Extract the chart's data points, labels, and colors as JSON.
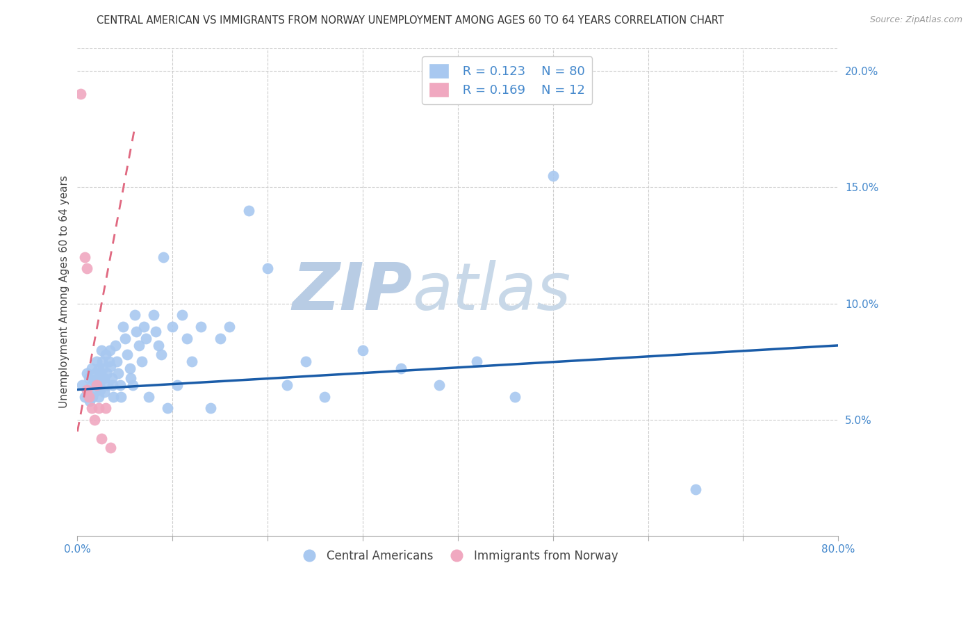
{
  "title": "CENTRAL AMERICAN VS IMMIGRANTS FROM NORWAY UNEMPLOYMENT AMONG AGES 60 TO 64 YEARS CORRELATION CHART",
  "source": "Source: ZipAtlas.com",
  "ylabel": "Unemployment Among Ages 60 to 64 years",
  "xlim": [
    0,
    0.8
  ],
  "ylim": [
    0,
    0.21
  ],
  "xticks": [
    0.0,
    0.1,
    0.2,
    0.3,
    0.4,
    0.5,
    0.6,
    0.7,
    0.8
  ],
  "xticklabels": [
    "0.0%",
    "",
    "",
    "",
    "",
    "",
    "",
    "",
    "80.0%"
  ],
  "yticks_right": [
    0.0,
    0.05,
    0.1,
    0.15,
    0.2
  ],
  "yticklabels_right": [
    "",
    "5.0%",
    "10.0%",
    "15.0%",
    "20.0%"
  ],
  "legend_blue_R": "0.123",
  "legend_blue_N": "80",
  "legend_pink_R": "0.169",
  "legend_pink_N": "12",
  "blue_color": "#a8c8f0",
  "pink_color": "#f0a8c0",
  "line_blue_color": "#1a5ca8",
  "line_pink_color": "#e06880",
  "watermark": "ZIPatlas",
  "watermark_color": "#d0dff0",
  "title_fontsize": 10.5,
  "axis_label_fontsize": 11,
  "tick_fontsize": 11,
  "tick_color": "#4488cc",
  "legend_label_blue": "Central Americans",
  "legend_label_pink": "Immigrants from Norway",
  "blue_scatter_x": [
    0.005,
    0.008,
    0.01,
    0.01,
    0.012,
    0.013,
    0.015,
    0.015,
    0.016,
    0.017,
    0.018,
    0.019,
    0.02,
    0.02,
    0.021,
    0.022,
    0.022,
    0.023,
    0.023,
    0.024,
    0.025,
    0.025,
    0.026,
    0.027,
    0.028,
    0.028,
    0.03,
    0.031,
    0.032,
    0.033,
    0.034,
    0.035,
    0.036,
    0.037,
    0.038,
    0.04,
    0.041,
    0.043,
    0.045,
    0.046,
    0.048,
    0.05,
    0.052,
    0.055,
    0.056,
    0.058,
    0.06,
    0.062,
    0.065,
    0.068,
    0.07,
    0.072,
    0.075,
    0.08,
    0.082,
    0.085,
    0.088,
    0.09,
    0.095,
    0.1,
    0.105,
    0.11,
    0.115,
    0.12,
    0.13,
    0.14,
    0.15,
    0.16,
    0.18,
    0.2,
    0.22,
    0.24,
    0.26,
    0.3,
    0.34,
    0.38,
    0.42,
    0.46,
    0.5,
    0.65
  ],
  "blue_scatter_y": [
    0.065,
    0.06,
    0.07,
    0.063,
    0.068,
    0.058,
    0.072,
    0.065,
    0.06,
    0.067,
    0.062,
    0.07,
    0.075,
    0.065,
    0.068,
    0.072,
    0.06,
    0.065,
    0.07,
    0.063,
    0.08,
    0.068,
    0.075,
    0.072,
    0.068,
    0.062,
    0.078,
    0.07,
    0.065,
    0.075,
    0.08,
    0.073,
    0.068,
    0.065,
    0.06,
    0.082,
    0.075,
    0.07,
    0.065,
    0.06,
    0.09,
    0.085,
    0.078,
    0.072,
    0.068,
    0.065,
    0.095,
    0.088,
    0.082,
    0.075,
    0.09,
    0.085,
    0.06,
    0.095,
    0.088,
    0.082,
    0.078,
    0.12,
    0.055,
    0.09,
    0.065,
    0.095,
    0.085,
    0.075,
    0.09,
    0.055,
    0.085,
    0.09,
    0.14,
    0.115,
    0.065,
    0.075,
    0.06,
    0.08,
    0.072,
    0.065,
    0.075,
    0.06,
    0.155,
    0.02
  ],
  "pink_scatter_x": [
    0.003,
    0.008,
    0.01,
    0.01,
    0.012,
    0.015,
    0.018,
    0.02,
    0.022,
    0.025,
    0.03,
    0.035
  ],
  "pink_scatter_y": [
    0.19,
    0.12,
    0.115,
    0.063,
    0.06,
    0.055,
    0.05,
    0.065,
    0.055,
    0.042,
    0.055,
    0.038
  ],
  "blue_line_x": [
    0.0,
    0.8
  ],
  "blue_line_y": [
    0.063,
    0.082
  ],
  "pink_line_x": [
    0.0,
    0.06
  ],
  "pink_line_y": [
    0.045,
    0.175
  ]
}
